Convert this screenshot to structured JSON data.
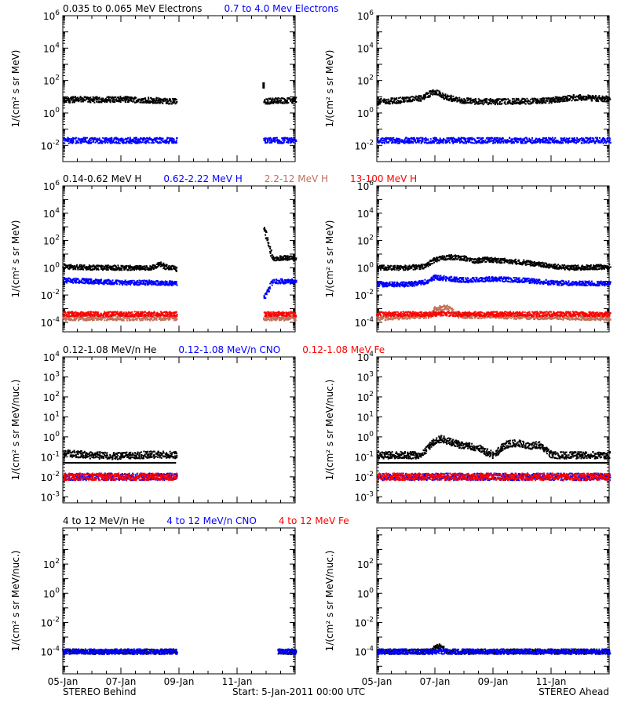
{
  "colors": {
    "black": "#000000",
    "blue": "#0000ff",
    "tan": "#c0705a",
    "red": "#ff0000"
  },
  "footer": {
    "left": "STEREO Behind",
    "center": "Start:  5-Jan-2011 00:00 UTC",
    "right": "STEREO Ahead"
  },
  "x_ticks": [
    "05-Jan",
    "07-Jan",
    "09-Jan",
    "11-Jan"
  ],
  "chart_data": [
    {
      "type": "scatter",
      "row": 1,
      "legend": [
        {
          "name": "0.035 to 0.065 MeV Electrons",
          "color": "black"
        },
        {
          "name": "0.7 to 4.0 Mev Electrons",
          "color": "blue"
        }
      ],
      "ylabel": "1/(cm² s sr MeV)",
      "yscale": "log",
      "ylim": [
        0.001,
        1000000
      ],
      "y_ticks": [
        {
          "exp": -2,
          "label": "10",
          "sup": "-2"
        },
        {
          "exp": 0,
          "label": "10",
          "sup": "0"
        },
        {
          "exp": 2,
          "label": "10",
          "sup": "2"
        },
        {
          "exp": 4,
          "label": "10",
          "sup": "4"
        },
        {
          "exp": 6,
          "label": "10",
          "sup": "6"
        }
      ],
      "xlim_days": [
        0,
        8
      ],
      "panels": {
        "behind": {
          "series": [
            {
              "name": "0.035 to 0.065 MeV Electrons",
              "color": "black",
              "segments": [
                [
                  0,
                  3.9
                ],
                [
                  6.9,
                  8
                ]
              ],
              "x": [
                0,
                0.5,
                1,
                1.5,
                2,
                2.5,
                3,
                3.5,
                3.9,
                6.9,
                7.3,
                7.6,
                8
              ],
              "y": [
                6,
                7,
                6.5,
                6.8,
                7,
                6.5,
                6,
                5.5,
                5,
                5,
                6,
                5.5,
                6
              ],
              "spike": [
                6.9,
                50
              ]
            },
            {
              "name": "0.7 to 4.0 Mev Electrons",
              "color": "blue",
              "segments": [
                [
                  0,
                  3.9
                ],
                [
                  6.9,
                  8
                ]
              ],
              "x": [
                0,
                1,
                2,
                3,
                3.9,
                6.9,
                8
              ],
              "y": [
                0.02,
                0.02,
                0.02,
                0.02,
                0.02,
                0.02,
                0.02
              ]
            }
          ]
        },
        "ahead": {
          "series": [
            {
              "name": "0.035 to 0.065 MeV Electrons",
              "color": "black",
              "segments": [
                [
                  0,
                  8
                ]
              ],
              "x": [
                0,
                0.8,
                1.5,
                1.8,
                2,
                2.3,
                2.8,
                3.5,
                4.5,
                5.5,
                6,
                6.5,
                7,
                7.5,
                8
              ],
              "y": [
                5,
                6,
                8,
                15,
                20,
                10,
                6,
                5,
                5,
                5.5,
                6,
                8,
                9,
                8,
                7
              ]
            },
            {
              "name": "0.7 to 4.0 Mev Electrons",
              "color": "blue",
              "segments": [
                [
                  0,
                  8
                ]
              ],
              "x": [
                0,
                2,
                4,
                6,
                8
              ],
              "y": [
                0.02,
                0.02,
                0.02,
                0.02,
                0.02
              ]
            }
          ]
        }
      }
    },
    {
      "type": "scatter",
      "row": 2,
      "legend": [
        {
          "name": "0.14-0.62 MeV H",
          "color": "black"
        },
        {
          "name": "0.62-2.22 MeV H",
          "color": "blue"
        },
        {
          "name": "2.2-12 MeV H",
          "color": "tan"
        },
        {
          "name": "13-100 MeV H",
          "color": "red"
        }
      ],
      "ylabel": "1/(cm² s sr MeV)",
      "yscale": "log",
      "ylim": [
        2e-05,
        1000000
      ],
      "y_ticks": [
        {
          "exp": -4,
          "label": "10",
          "sup": "-4"
        },
        {
          "exp": -2,
          "label": "10",
          "sup": "-2"
        },
        {
          "exp": 0,
          "label": "10",
          "sup": "0"
        },
        {
          "exp": 2,
          "label": "10",
          "sup": "2"
        },
        {
          "exp": 4,
          "label": "10",
          "sup": "4"
        },
        {
          "exp": 6,
          "label": "10",
          "sup": "6"
        }
      ],
      "xlim_days": [
        0,
        8
      ],
      "panels": {
        "behind": {
          "series": [
            {
              "name": "0.14-0.62 MeV H",
              "color": "black",
              "segments": [
                [
                  0,
                  3.9
                ],
                [
                  6.9,
                  8
                ]
              ],
              "x": [
                0,
                1,
                2,
                3,
                3.3,
                3.5,
                3.9,
                6.9,
                7.2,
                8
              ],
              "y": [
                1.2,
                1.0,
                1.0,
                0.9,
                1.8,
                1.2,
                0.8,
                1000,
                5,
                5
              ]
            },
            {
              "name": "0.62-2.22 MeV H",
              "color": "blue",
              "segments": [
                [
                  0,
                  3.9
                ],
                [
                  6.9,
                  8
                ]
              ],
              "x": [
                0,
                1,
                2,
                3,
                3.9,
                6.9,
                7.2,
                8
              ],
              "y": [
                0.12,
                0.1,
                0.08,
                0.08,
                0.07,
                0.005,
                0.1,
                0.1
              ]
            },
            {
              "name": "2.2-12 MeV H",
              "color": "tan",
              "segments": [
                [
                  0,
                  3.9
                ],
                [
                  6.9,
                  8
                ]
              ],
              "x": [
                0,
                2,
                3.9,
                6.9,
                8
              ],
              "y": [
                0.0002,
                0.0002,
                0.0002,
                0.0002,
                0.0002
              ]
            },
            {
              "name": "13-100 MeV H",
              "color": "red",
              "segments": [
                [
                  0,
                  3.9
                ],
                [
                  6.9,
                  8
                ]
              ],
              "x": [
                0,
                2,
                3.9,
                6.9,
                8
              ],
              "y": [
                0.0004,
                0.0004,
                0.0004,
                0.0004,
                0.0004
              ]
            }
          ]
        },
        "ahead": {
          "series": [
            {
              "name": "0.14-0.62 MeV H",
              "color": "black",
              "segments": [
                [
                  0,
                  8
                ]
              ],
              "x": [
                0,
                1,
                1.6,
                2,
                2.5,
                3,
                3.3,
                3.7,
                4.5,
                5,
                5.8,
                6.5,
                7,
                8
              ],
              "y": [
                1,
                1,
                1.2,
                4,
                6,
                5,
                3,
                4,
                3,
                2.5,
                1.5,
                1,
                1,
                1.2
              ]
            },
            {
              "name": "0.62-2.22 MeV H",
              "color": "blue",
              "segments": [
                [
                  0,
                  8
                ]
              ],
              "x": [
                0,
                1,
                1.6,
                2,
                2.5,
                3,
                4,
                5,
                6,
                7,
                8
              ],
              "y": [
                0.06,
                0.06,
                0.08,
                0.2,
                0.15,
                0.12,
                0.15,
                0.12,
                0.08,
                0.07,
                0.07
              ]
            },
            {
              "name": "2.2-12 MeV H",
              "color": "tan",
              "segments": [
                [
                  0,
                  8
                ]
              ],
              "x": [
                0,
                1.8,
                2,
                2.4,
                2.8,
                8
              ],
              "y": [
                0.0002,
                0.0003,
                0.001,
                0.0012,
                0.0003,
                0.0002
              ]
            },
            {
              "name": "13-100 MeV H",
              "color": "red",
              "segments": [
                [
                  0,
                  8
                ]
              ],
              "x": [
                0,
                4,
                8
              ],
              "y": [
                0.0004,
                0.0004,
                0.0004
              ]
            }
          ]
        }
      }
    },
    {
      "type": "scatter",
      "row": 3,
      "legend": [
        {
          "name": "0.12-1.08 MeV/n He",
          "color": "black"
        },
        {
          "name": "0.12-1.08 MeV/n CNO",
          "color": "blue"
        },
        {
          "name": "0.12-1.08 MeV Fe",
          "color": "red"
        }
      ],
      "ylabel": "1/(cm² s sr MeV/nuc.)",
      "yscale": "log",
      "ylim": [
        0.0005,
        10000
      ],
      "y_ticks": [
        {
          "exp": -3,
          "label": "10",
          "sup": "-3"
        },
        {
          "exp": -2,
          "label": "10",
          "sup": "-2"
        },
        {
          "exp": -1,
          "label": "10",
          "sup": "-1"
        },
        {
          "exp": 0,
          "label": "10",
          "sup": "0"
        },
        {
          "exp": 1,
          "label": "10",
          "sup": "1"
        },
        {
          "exp": 2,
          "label": "10",
          "sup": "2"
        },
        {
          "exp": 3,
          "label": "10",
          "sup": "3"
        },
        {
          "exp": 4,
          "label": "10",
          "sup": "4"
        }
      ],
      "xlim_days": [
        0,
        8
      ],
      "panels": {
        "behind": {
          "series": [
            {
              "name": "0.12-1.08 MeV/n He",
              "color": "black",
              "segments": [
                [
                  0,
                  3.9
                ]
              ],
              "x": [
                0,
                1,
                2,
                3,
                3.9
              ],
              "y": [
                0.15,
                0.12,
                0.11,
                0.13,
                0.12
              ],
              "baseline": 0.05
            },
            {
              "name": "0.12-1.08 MeV/n CNO",
              "color": "blue",
              "segments": [
                [
                  0,
                  3.9
                ]
              ],
              "x": [
                0,
                3.9
              ],
              "y": [
                0.01,
                0.01
              ]
            },
            {
              "name": "0.12-1.08 MeV Fe",
              "color": "red",
              "segments": [
                [
                  0,
                  3.9
                ]
              ],
              "x": [
                0,
                3.9
              ],
              "y": [
                0.01,
                0.01
              ]
            }
          ]
        },
        "ahead": {
          "series": [
            {
              "name": "0.12-1.08 MeV/n He",
              "color": "black",
              "segments": [
                [
                  0,
                  8
                ]
              ],
              "x": [
                0,
                1.5,
                1.9,
                2.2,
                2.6,
                3.0,
                3.4,
                4.0,
                4.4,
                4.8,
                5.2,
                5.6,
                6.0,
                7.0,
                8.0
              ],
              "y": [
                0.12,
                0.12,
                0.5,
                0.8,
                0.5,
                0.35,
                0.3,
                0.12,
                0.4,
                0.5,
                0.35,
                0.4,
                0.12,
                0.12,
                0.12
              ],
              "baseline": 0.05
            },
            {
              "name": "0.12-1.08 MeV/n CNO",
              "color": "blue",
              "segments": [
                [
                  0,
                  8
                ]
              ],
              "x": [
                0,
                8
              ],
              "y": [
                0.01,
                0.01
              ]
            },
            {
              "name": "0.12-1.08 MeV Fe",
              "color": "red",
              "segments": [
                [
                  0,
                  8
                ]
              ],
              "x": [
                0,
                8
              ],
              "y": [
                0.01,
                0.01
              ]
            }
          ]
        }
      }
    },
    {
      "type": "scatter",
      "row": 4,
      "legend": [
        {
          "name": "4 to 12 MeV/n He",
          "color": "black"
        },
        {
          "name": "4 to 12 MeV/n CNO",
          "color": "blue"
        },
        {
          "name": "4 to 12 MeV Fe",
          "color": "red"
        }
      ],
      "ylabel": "1/(cm² s sr MeV/nuc.)",
      "yscale": "log",
      "ylim": [
        3e-06,
        30000
      ],
      "y_ticks": [
        {
          "exp": -4,
          "label": "10",
          "sup": "-4"
        },
        {
          "exp": -2,
          "label": "10",
          "sup": "-2"
        },
        {
          "exp": 0,
          "label": "10",
          "sup": "0"
        },
        {
          "exp": 2,
          "label": "10",
          "sup": "2"
        }
      ],
      "xlim_days": [
        0,
        8
      ],
      "panels": {
        "behind": {
          "series": [
            {
              "name": "4 to 12 MeV/n He",
              "color": "black",
              "segments": [
                [
                  0,
                  3.9
                ],
                [
                  7.4,
                  8
                ]
              ],
              "x": [
                0,
                3.9,
                7.4,
                8
              ],
              "y": [
                0.0001,
                0.0001,
                0.0001,
                0.0001
              ]
            },
            {
              "name": "4 to 12 MeV/n CNO",
              "color": "blue",
              "segments": [
                [
                  0,
                  3.9
                ],
                [
                  7.4,
                  8
                ]
              ],
              "x": [
                0,
                3.9,
                7.4,
                8
              ],
              "y": [
                0.0001,
                0.0001,
                0.0001,
                0.0001
              ]
            }
          ]
        },
        "ahead": {
          "series": [
            {
              "name": "4 to 12 MeV/n He",
              "color": "black",
              "segments": [
                [
                  0,
                  8
                ]
              ],
              "x": [
                0,
                1.8,
                2.1,
                2.4,
                8
              ],
              "y": [
                0.0001,
                0.0001,
                0.00025,
                0.0001,
                0.0001
              ]
            },
            {
              "name": "4 to 12 MeV/n CNO",
              "color": "blue",
              "segments": [
                [
                  0,
                  8
                ]
              ],
              "x": [
                0,
                8
              ],
              "y": [
                0.0001,
                0.0001
              ]
            }
          ]
        }
      }
    }
  ]
}
